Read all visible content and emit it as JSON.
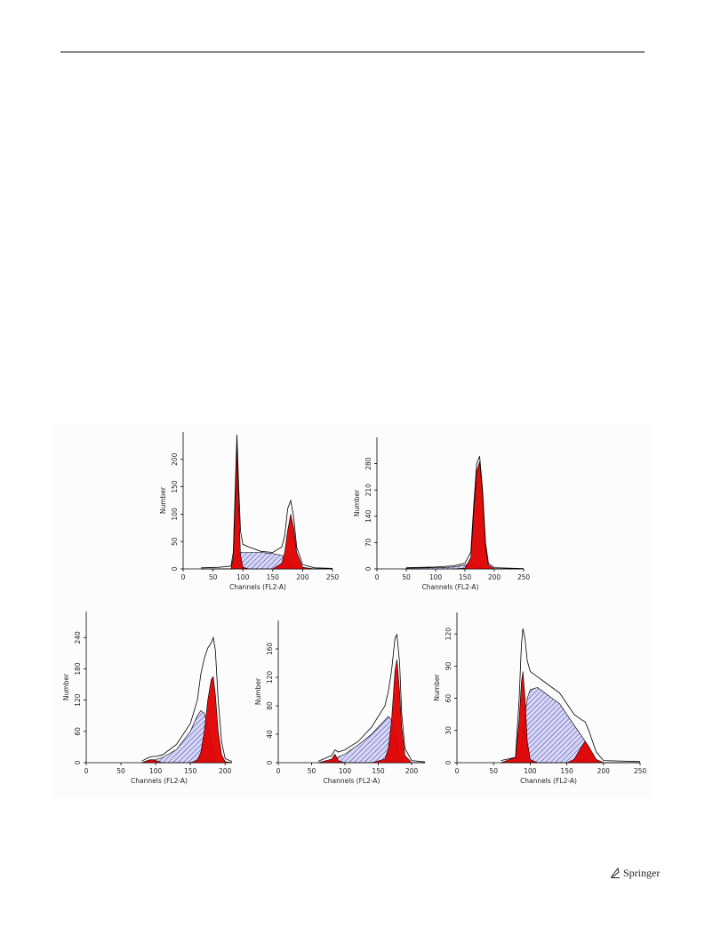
{
  "chart_data": [
    {
      "type": "cytometry",
      "x_label": "Channels (FL2-A)",
      "y_label": "Number",
      "xlim": [
        0,
        250
      ],
      "ylim": [
        0,
        250
      ],
      "xticks": [
        0,
        50,
        100,
        150,
        200,
        250
      ],
      "yticks": [
        0,
        50,
        100,
        150,
        200
      ],
      "x": [
        30,
        60,
        80,
        84,
        87,
        90,
        93,
        96,
        100,
        110,
        130,
        150,
        165,
        170,
        175,
        180,
        185,
        190,
        200,
        220,
        250
      ],
      "series": [
        {
          "kind": "hatched",
          "color": "#3a3ab0",
          "values": [
            0,
            0,
            0,
            5,
            15,
            25,
            30,
            30,
            30,
            30,
            30,
            28,
            25,
            20,
            15,
            8,
            3,
            0,
            0,
            0,
            0
          ]
        },
        {
          "kind": "peak",
          "color": "#e00000",
          "values": [
            0,
            0,
            0,
            20,
            120,
            230,
            120,
            25,
            3,
            0,
            0,
            0,
            0,
            0,
            0,
            0,
            0,
            0,
            0,
            0,
            0
          ]
        },
        {
          "kind": "peak",
          "color": "#e00000",
          "values": [
            0,
            0,
            0,
            0,
            0,
            0,
            0,
            0,
            0,
            0,
            0,
            0,
            10,
            30,
            70,
            100,
            75,
            30,
            3,
            0,
            0
          ]
        },
        {
          "kind": "line",
          "color": "#000000",
          "values": [
            2,
            3,
            5,
            30,
            140,
            245,
            150,
            70,
            45,
            40,
            32,
            30,
            40,
            60,
            110,
            125,
            95,
            40,
            8,
            2,
            1
          ]
        }
      ]
    },
    {
      "type": "cytometry",
      "x_label": "Channels (FL2-A)",
      "y_label": "Number",
      "xlim": [
        0,
        250
      ],
      "ylim": [
        0,
        350
      ],
      "xticks": [
        0,
        50,
        100,
        150,
        200,
        250
      ],
      "yticks": [
        0,
        70,
        140,
        210,
        280
      ],
      "x": [
        50,
        100,
        130,
        150,
        160,
        165,
        170,
        175,
        180,
        185,
        190,
        200,
        250
      ],
      "series": [
        {
          "kind": "hatched",
          "color": "#3a3ab0",
          "values": [
            2,
            3,
            5,
            10,
            12,
            10,
            8,
            5,
            2,
            0,
            0,
            0,
            0
          ]
        },
        {
          "kind": "peak",
          "color": "#e00000",
          "values": [
            0,
            0,
            0,
            2,
            30,
            150,
            260,
            285,
            200,
            60,
            10,
            0,
            0
          ]
        },
        {
          "kind": "line",
          "color": "#000000",
          "values": [
            3,
            5,
            8,
            15,
            45,
            170,
            280,
            300,
            210,
            70,
            15,
            3,
            1
          ]
        }
      ]
    },
    {
      "type": "cytometry",
      "x_label": "Channels (FL2-A)",
      "y_label": "Number",
      "xlim": [
        0,
        210
      ],
      "ylim": [
        0,
        290
      ],
      "xticks": [
        0,
        50,
        100,
        150,
        200
      ],
      "yticks": [
        0,
        60,
        120,
        180,
        240
      ],
      "x": [
        80,
        90,
        95,
        100,
        110,
        130,
        150,
        160,
        165,
        170,
        175,
        180,
        183,
        186,
        190,
        195,
        200,
        210
      ],
      "series": [
        {
          "kind": "hatched",
          "color": "#3a3ab0",
          "values": [
            0,
            3,
            5,
            6,
            10,
            25,
            60,
            90,
            100,
            95,
            70,
            40,
            20,
            8,
            2,
            0,
            0,
            0
          ]
        },
        {
          "kind": "peak",
          "color": "#e00000",
          "values": [
            0,
            5,
            6,
            4,
            0,
            0,
            0,
            0,
            0,
            0,
            0,
            0,
            0,
            0,
            0,
            0,
            0,
            0
          ]
        },
        {
          "kind": "peak",
          "color": "#e00000",
          "values": [
            0,
            0,
            0,
            0,
            0,
            0,
            0,
            5,
            20,
            60,
            120,
            160,
            165,
            130,
            60,
            15,
            2,
            0
          ]
        },
        {
          "kind": "line",
          "color": "#000000",
          "values": [
            3,
            10,
            12,
            12,
            15,
            35,
            75,
            120,
            170,
            200,
            220,
            230,
            240,
            215,
            120,
            40,
            8,
            2
          ]
        }
      ]
    },
    {
      "type": "cytometry",
      "x_label": "Channels (FL2-A)",
      "y_label": "Number",
      "xlim": [
        0,
        220
      ],
      "ylim": [
        0,
        200
      ],
      "xticks": [
        0,
        50,
        100,
        150,
        200
      ],
      "yticks": [
        0,
        40,
        80,
        120,
        160
      ],
      "x": [
        60,
        80,
        85,
        90,
        100,
        120,
        140,
        160,
        165,
        170,
        175,
        178,
        182,
        185,
        190,
        200,
        220
      ],
      "series": [
        {
          "kind": "hatched",
          "color": "#3a3ab0",
          "values": [
            0,
            2,
            5,
            8,
            12,
            25,
            40,
            60,
            65,
            60,
            40,
            25,
            10,
            3,
            0,
            0,
            0
          ]
        },
        {
          "kind": "peak",
          "color": "#e00000",
          "values": [
            0,
            5,
            12,
            3,
            0,
            0,
            0,
            0,
            0,
            0,
            0,
            0,
            0,
            0,
            0,
            0,
            0
          ]
        },
        {
          "kind": "peak",
          "color": "#e00000",
          "values": [
            0,
            0,
            0,
            0,
            0,
            0,
            0,
            5,
            20,
            60,
            130,
            145,
            100,
            50,
            10,
            0,
            0
          ]
        },
        {
          "kind": "line",
          "color": "#000000",
          "values": [
            2,
            10,
            18,
            15,
            18,
            30,
            50,
            80,
            100,
            130,
            175,
            180,
            140,
            70,
            20,
            3,
            1
          ]
        }
      ]
    },
    {
      "type": "cytometry",
      "x_label": "Channels (FL2-A)",
      "y_label": "Number",
      "xlim": [
        0,
        250
      ],
      "ylim": [
        0,
        140
      ],
      "xticks": [
        0,
        50,
        100,
        150,
        200,
        250
      ],
      "yticks": [
        0,
        30,
        60,
        90,
        120
      ],
      "x": [
        60,
        80,
        85,
        88,
        90,
        93,
        96,
        100,
        110,
        120,
        130,
        140,
        150,
        160,
        170,
        175,
        180,
        190,
        200,
        250
      ],
      "series": [
        {
          "kind": "hatched",
          "color": "#3a3ab0",
          "values": [
            0,
            0,
            5,
            15,
            25,
            45,
            60,
            68,
            70,
            65,
            60,
            55,
            45,
            35,
            25,
            20,
            12,
            3,
            0,
            0
          ]
        },
        {
          "kind": "peak",
          "color": "#e00000",
          "values": [
            0,
            5,
            40,
            75,
            85,
            60,
            20,
            3,
            0,
            0,
            0,
            0,
            0,
            0,
            0,
            0,
            0,
            0,
            0,
            0
          ]
        },
        {
          "kind": "peak",
          "color": "#e00000",
          "values": [
            0,
            0,
            0,
            0,
            0,
            0,
            0,
            0,
            0,
            0,
            0,
            0,
            0,
            3,
            15,
            20,
            15,
            3,
            0,
            0
          ]
        },
        {
          "kind": "line",
          "color": "#000000",
          "values": [
            2,
            5,
            60,
            110,
            125,
            115,
            95,
            85,
            80,
            75,
            70,
            65,
            55,
            45,
            40,
            38,
            30,
            10,
            2,
            1
          ]
        }
      ]
    }
  ],
  "footer": {
    "publisher": "Springer"
  }
}
